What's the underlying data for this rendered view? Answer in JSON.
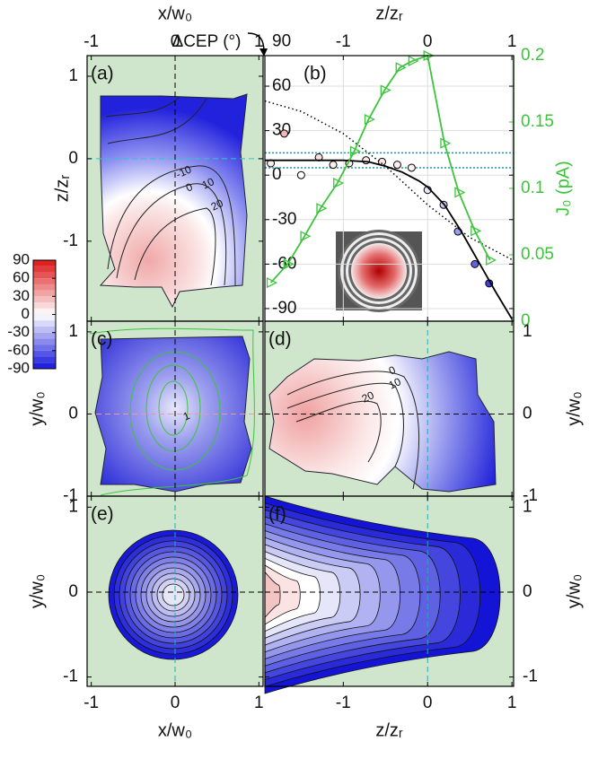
{
  "annotation": "ΔCEP (°)",
  "chart_data": [
    {
      "type": "contour",
      "label": "(a)",
      "xlabel": "x/w₀",
      "ylabel": "z/zᵣ",
      "xlim": [
        -1.05,
        1.05
      ],
      "ylim": [
        -1.97,
        1.25
      ],
      "xticks": [
        -1,
        0,
        1
      ],
      "yticks": [
        -1,
        0,
        1
      ],
      "contour_labels": [
        -10,
        0,
        10,
        20
      ]
    },
    {
      "type": "scatter-line",
      "label": "(b)",
      "xlabel": "z/zᵣ",
      "y2label": "J₀ (pA)",
      "xlim": [
        -1.93,
        1.02
      ],
      "ylim": [
        -98.5,
        80.6
      ],
      "xticks": [
        -1,
        0,
        1
      ],
      "yticks": [
        90,
        60,
        30,
        0,
        -30,
        -60,
        -90
      ],
      "y2lim": [
        0,
        0.2
      ],
      "y2ticks": [
        0,
        0.05,
        0.1,
        0.15,
        0.2
      ],
      "y2color": "#3cc43c",
      "grid": true,
      "hlines": {
        "color": "#1a9aa6",
        "values": [
          15,
          5
        ]
      },
      "series": [
        {
          "kind": "scatter",
          "x": [
            -1.86,
            -1.7,
            -1.5,
            -1.29,
            -1.12,
            -0.93,
            -0.73,
            -0.54,
            -0.36,
            -0.19,
            0,
            0.19,
            0.36,
            0.56,
            0.73
          ],
          "values": [
            8,
            28,
            0,
            12,
            7,
            8,
            10,
            9,
            7,
            5,
            -10,
            -20,
            -38,
            -60,
            -73
          ]
        },
        {
          "kind": "line",
          "color": "#000000",
          "x": [
            -1.93,
            -1.5,
            -1.0,
            -0.7,
            -0.5,
            -0.3,
            -0.1,
            0,
            0.2,
            0.4,
            0.6,
            0.8,
            1.0
          ],
          "values": [
            10,
            10,
            10,
            9,
            6,
            2,
            -4,
            -8,
            -20,
            -38,
            -58,
            -78,
            -97
          ]
        },
        {
          "kind": "dotted",
          "color": "#000000",
          "x": [
            -1.93,
            -1.5,
            -1.0,
            -0.5,
            0,
            0.5,
            1.0
          ],
          "values": [
            50,
            43,
            28,
            6,
            -20,
            -42,
            -57
          ]
        },
        {
          "kind": "triangle-line",
          "axis": "y2",
          "color": "#3cc43c",
          "x": [
            -1.86,
            -1.66,
            -1.46,
            -1.27,
            -1.07,
            -0.87,
            -0.7,
            -0.51,
            -0.33,
            -0.18,
            0,
            0.2,
            0.37,
            0.56,
            0.74
          ],
          "values": [
            0.029,
            0.043,
            0.064,
            0.085,
            0.104,
            0.128,
            0.152,
            0.174,
            0.191,
            0.196,
            0.2,
            0.134,
            0.097,
            0.068,
            0.046
          ]
        }
      ]
    },
    {
      "type": "contour",
      "label": "(c)",
      "ylabel": "y/w₀",
      "xlim": [
        -1.05,
        1.05
      ],
      "ylim": [
        -1.0,
        1.13
      ],
      "xticks": [
        -1,
        0,
        1
      ],
      "yticks": [
        -1,
        0,
        1
      ],
      "contour_labels": [
        1
      ]
    },
    {
      "type": "contour",
      "label": "(d)",
      "ylabel": "y/w₀",
      "xlim": [
        -1.93,
        1.02
      ],
      "ylim": [
        -1.0,
        1.13
      ],
      "xticks": [
        -1,
        0,
        1
      ],
      "yticks": [
        -1,
        0,
        1
      ],
      "contour_labels": [
        0,
        10,
        20
      ]
    },
    {
      "type": "contour",
      "label": "(e)",
      "xlabel": "x/w₀",
      "ylabel": "y/w₀",
      "xlim": [
        -1.05,
        1.05
      ],
      "ylim": [
        -1.11,
        1.13
      ],
      "xticks": [
        -1,
        0,
        1
      ],
      "yticks": [
        -1,
        0,
        1
      ]
    },
    {
      "type": "contour",
      "label": "(f)",
      "xlabel": "z/zᵣ",
      "ylabel": "y/w₀",
      "xlim": [
        -1.93,
        1.02
      ],
      "ylim": [
        -1.11,
        1.13
      ],
      "xticks": [
        -1,
        0,
        1
      ],
      "yticks": [
        -1,
        0,
        1
      ]
    },
    {
      "type": "colorbar",
      "ylim": [
        -90,
        90
      ],
      "yticks": [
        90,
        60,
        30,
        0,
        -30,
        -60,
        -90
      ]
    }
  ]
}
